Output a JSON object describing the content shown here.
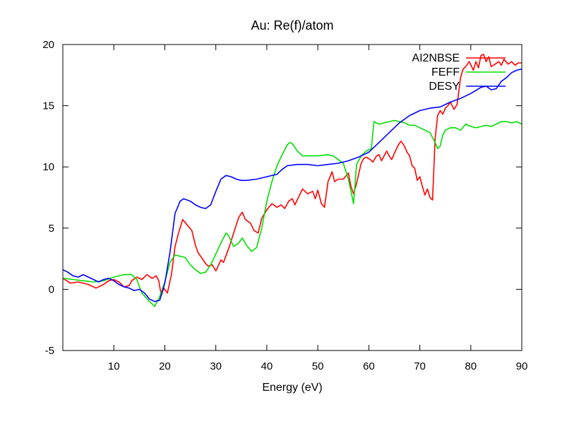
{
  "chart_data": {
    "type": "line",
    "title": "Au: Re(f)/atom",
    "xlabel": "Energy (eV)",
    "ylabel": "",
    "xlim": [
      0,
      90
    ],
    "ylim": [
      -5,
      20
    ],
    "xticks": [
      10,
      20,
      30,
      40,
      50,
      60,
      70,
      80,
      90
    ],
    "yticks": [
      -5,
      0,
      5,
      10,
      15,
      20
    ],
    "legend_position": "top-right",
    "series": [
      {
        "name": "AI2NBSE",
        "color": "#ff0000",
        "points": [
          [
            0,
            0.9
          ],
          [
            1.5,
            0.5
          ],
          [
            3,
            0.6
          ],
          [
            5,
            0.4
          ],
          [
            6.5,
            0.1
          ],
          [
            8,
            0.4
          ],
          [
            9,
            0.7
          ],
          [
            10,
            0.8
          ],
          [
            11,
            0.6
          ],
          [
            12,
            0.2
          ],
          [
            13,
            0.3
          ],
          [
            13.5,
            0.7
          ],
          [
            14.5,
            1.0
          ],
          [
            15.5,
            0.8
          ],
          [
            16.5,
            1.2
          ],
          [
            17.5,
            0.9
          ],
          [
            18.3,
            1.1
          ],
          [
            18.8,
            0.7
          ],
          [
            19.3,
            -0.5
          ],
          [
            19.8,
            0.1
          ],
          [
            20.5,
            -0.3
          ],
          [
            21.3,
            1.2
          ],
          [
            22,
            3.5
          ],
          [
            22.7,
            4.6
          ],
          [
            23.5,
            5.7
          ],
          [
            24.5,
            5.2
          ],
          [
            25.3,
            4.8
          ],
          [
            26,
            3.6
          ],
          [
            26.5,
            3.0
          ],
          [
            27.2,
            2.6
          ],
          [
            28,
            2.1
          ],
          [
            28.5,
            1.9
          ],
          [
            29.3,
            2.0
          ],
          [
            30,
            1.5
          ],
          [
            31,
            2.4
          ],
          [
            31.5,
            2.2
          ],
          [
            32.5,
            3.3
          ],
          [
            33.5,
            4.6
          ],
          [
            34.5,
            5.9
          ],
          [
            35.2,
            6.3
          ],
          [
            35.8,
            5.7
          ],
          [
            36.8,
            5.4
          ],
          [
            37.5,
            4.8
          ],
          [
            38.3,
            4.6
          ],
          [
            39,
            5.8
          ],
          [
            40,
            6.5
          ],
          [
            41,
            7.0
          ],
          [
            42,
            6.7
          ],
          [
            42.8,
            6.9
          ],
          [
            43.5,
            6.6
          ],
          [
            44.3,
            7.2
          ],
          [
            45,
            7.4
          ],
          [
            45.5,
            6.9
          ],
          [
            46.3,
            7.6
          ],
          [
            47,
            8.2
          ],
          [
            48,
            7.8
          ],
          [
            49,
            8.0
          ],
          [
            49.5,
            7.4
          ],
          [
            50,
            8.1
          ],
          [
            50.7,
            7.0
          ],
          [
            51.3,
            6.7
          ],
          [
            52,
            8.8
          ],
          [
            52.8,
            9.6
          ],
          [
            53.3,
            8.8
          ],
          [
            54,
            9.0
          ],
          [
            55,
            9.0
          ],
          [
            56,
            9.5
          ],
          [
            56.5,
            8.4
          ],
          [
            57,
            7.8
          ],
          [
            57.5,
            8.5
          ],
          [
            58.5,
            10.3
          ],
          [
            59,
            10.7
          ],
          [
            59.5,
            10.8
          ],
          [
            60.3,
            10.6
          ],
          [
            60.8,
            10.4
          ],
          [
            61.5,
            10.9
          ],
          [
            62,
            11.0
          ],
          [
            62.5,
            10.5
          ],
          [
            63.5,
            11.3
          ],
          [
            64,
            10.9
          ],
          [
            64.5,
            10.6
          ],
          [
            65,
            11.1
          ],
          [
            65.8,
            11.8
          ],
          [
            66.3,
            12.1
          ],
          [
            67,
            11.7
          ],
          [
            67.5,
            11.2
          ],
          [
            68,
            10.9
          ],
          [
            68.5,
            10.1
          ],
          [
            69,
            9.9
          ],
          [
            69.5,
            8.9
          ],
          [
            70,
            9.2
          ],
          [
            70.5,
            8.4
          ],
          [
            71,
            7.7
          ],
          [
            71.5,
            8.2
          ],
          [
            72,
            7.5
          ],
          [
            72.5,
            7.3
          ],
          [
            73,
            12.3
          ],
          [
            73.5,
            14.2
          ],
          [
            74,
            14.6
          ],
          [
            74.5,
            14.3
          ],
          [
            75,
            14.8
          ],
          [
            75.5,
            15.0
          ],
          [
            76,
            15.3
          ],
          [
            76.7,
            14.7
          ],
          [
            77.3,
            15.1
          ],
          [
            78,
            17.3
          ],
          [
            78.5,
            18.0
          ],
          [
            79,
            18.2
          ],
          [
            79.7,
            18.6
          ],
          [
            80.5,
            17.9
          ],
          [
            81,
            18.6
          ],
          [
            81.5,
            18.1
          ],
          [
            82,
            19.1
          ],
          [
            82.5,
            19.2
          ],
          [
            83,
            18.6
          ],
          [
            83.5,
            19.0
          ],
          [
            84,
            18.2
          ],
          [
            84.8,
            18.4
          ],
          [
            85.5,
            18.6
          ],
          [
            86,
            18.3
          ],
          [
            86.5,
            18.8
          ],
          [
            87.3,
            18.4
          ],
          [
            88,
            18.6
          ],
          [
            88.7,
            18.3
          ],
          [
            89.3,
            18.5
          ],
          [
            90,
            18.5
          ]
        ]
      },
      {
        "name": "FEFF",
        "color": "#00dd00",
        "points": [
          [
            0,
            0.9
          ],
          [
            2,
            0.8
          ],
          [
            4,
            0.7
          ],
          [
            6,
            0.6
          ],
          [
            8,
            0.7
          ],
          [
            10,
            1.0
          ],
          [
            12,
            1.2
          ],
          [
            13.5,
            1.2
          ],
          [
            14.5,
            0.8
          ],
          [
            15.5,
            -0.3
          ],
          [
            17,
            -1.0
          ],
          [
            18,
            -1.4
          ],
          [
            19,
            -0.6
          ],
          [
            20,
            0.6
          ],
          [
            21,
            2.2
          ],
          [
            22,
            2.8
          ],
          [
            23,
            2.7
          ],
          [
            24,
            2.6
          ],
          [
            25,
            2.0
          ],
          [
            26,
            1.6
          ],
          [
            27,
            1.3
          ],
          [
            28,
            1.4
          ],
          [
            29,
            2.0
          ],
          [
            30,
            2.9
          ],
          [
            31,
            3.8
          ],
          [
            32,
            4.6
          ],
          [
            32.5,
            4.4
          ],
          [
            33.5,
            3.5
          ],
          [
            34.5,
            3.8
          ],
          [
            35.2,
            4.2
          ],
          [
            36,
            3.6
          ],
          [
            37,
            3.1
          ],
          [
            38,
            3.4
          ],
          [
            39,
            5.0
          ],
          [
            40,
            7.2
          ],
          [
            41,
            8.8
          ],
          [
            42,
            10.1
          ],
          [
            43,
            11.0
          ],
          [
            44,
            11.8
          ],
          [
            44.5,
            12.0
          ],
          [
            45,
            11.9
          ],
          [
            46,
            11.3
          ],
          [
            47,
            10.9
          ],
          [
            48,
            10.9
          ],
          [
            50,
            10.9
          ],
          [
            52,
            11.0
          ],
          [
            53,
            10.9
          ],
          [
            54,
            10.6
          ],
          [
            55,
            10.3
          ],
          [
            56,
            9.0
          ],
          [
            56.5,
            8.0
          ],
          [
            57,
            7.0
          ],
          [
            57.6,
            10.2
          ],
          [
            58.5,
            10.9
          ],
          [
            59.5,
            11.3
          ],
          [
            60.5,
            11.5
          ],
          [
            61,
            13.7
          ],
          [
            62,
            13.5
          ],
          [
            63,
            13.6
          ],
          [
            64,
            13.7
          ],
          [
            65,
            13.8
          ],
          [
            66,
            13.7
          ],
          [
            67,
            13.6
          ],
          [
            68,
            13.4
          ],
          [
            69,
            13.4
          ],
          [
            70,
            13.2
          ],
          [
            71,
            13.0
          ],
          [
            72,
            12.8
          ],
          [
            72.5,
            12.4
          ],
          [
            73,
            12.0
          ],
          [
            73.5,
            11.5
          ],
          [
            74,
            11.7
          ],
          [
            74.5,
            12.6
          ],
          [
            75,
            13.0
          ],
          [
            76,
            13.2
          ],
          [
            77,
            13.2
          ],
          [
            78,
            13.0
          ],
          [
            79,
            13.5
          ],
          [
            80,
            13.3
          ],
          [
            81,
            13.2
          ],
          [
            82,
            13.3
          ],
          [
            83,
            13.4
          ],
          [
            84,
            13.3
          ],
          [
            85,
            13.5
          ],
          [
            86,
            13.7
          ],
          [
            87,
            13.7
          ],
          [
            88,
            13.6
          ],
          [
            89,
            13.7
          ],
          [
            90,
            13.5
          ]
        ]
      },
      {
        "name": "DESY",
        "color": "#0000ff",
        "points": [
          [
            0,
            1.6
          ],
          [
            1,
            1.4
          ],
          [
            2,
            1.1
          ],
          [
            3,
            1.0
          ],
          [
            4,
            1.2
          ],
          [
            5,
            1.0
          ],
          [
            6,
            0.8
          ],
          [
            7,
            0.6
          ],
          [
            8,
            0.8
          ],
          [
            9,
            0.9
          ],
          [
            10,
            0.7
          ],
          [
            11,
            0.4
          ],
          [
            12,
            0.2
          ],
          [
            13,
            0.1
          ],
          [
            14,
            -0.1
          ],
          [
            15,
            0.0
          ],
          [
            16,
            -0.3
          ],
          [
            17,
            -0.8
          ],
          [
            18,
            -1.0
          ],
          [
            19,
            -0.9
          ],
          [
            20,
            0.5
          ],
          [
            21,
            3.0
          ],
          [
            22,
            6.2
          ],
          [
            23,
            7.2
          ],
          [
            23.7,
            7.4
          ],
          [
            25,
            7.2
          ],
          [
            26,
            6.9
          ],
          [
            27,
            6.7
          ],
          [
            28,
            6.6
          ],
          [
            29,
            6.9
          ],
          [
            30,
            8.0
          ],
          [
            31,
            9.0
          ],
          [
            32,
            9.3
          ],
          [
            33,
            9.2
          ],
          [
            34,
            9.0
          ],
          [
            35,
            8.9
          ],
          [
            36,
            8.9
          ],
          [
            38,
            9.0
          ],
          [
            40,
            9.2
          ],
          [
            42,
            9.4
          ],
          [
            43,
            9.8
          ],
          [
            44,
            10.1
          ],
          [
            46,
            10.2
          ],
          [
            48,
            10.2
          ],
          [
            50,
            10.1
          ],
          [
            52,
            10.2
          ],
          [
            54,
            10.3
          ],
          [
            56,
            10.5
          ],
          [
            58,
            10.8
          ],
          [
            60,
            11.2
          ],
          [
            62,
            12.0
          ],
          [
            64,
            12.8
          ],
          [
            66,
            13.6
          ],
          [
            68,
            14.2
          ],
          [
            70,
            14.6
          ],
          [
            72,
            14.8
          ],
          [
            74,
            14.9
          ],
          [
            76,
            15.3
          ],
          [
            78,
            15.6
          ],
          [
            80,
            16.0
          ],
          [
            82,
            16.5
          ],
          [
            83,
            16.6
          ],
          [
            84,
            16.3
          ],
          [
            85,
            16.4
          ],
          [
            86,
            17.0
          ],
          [
            87,
            17.3
          ],
          [
            88,
            17.7
          ],
          [
            89,
            17.9
          ],
          [
            90,
            18.0
          ]
        ]
      }
    ]
  }
}
